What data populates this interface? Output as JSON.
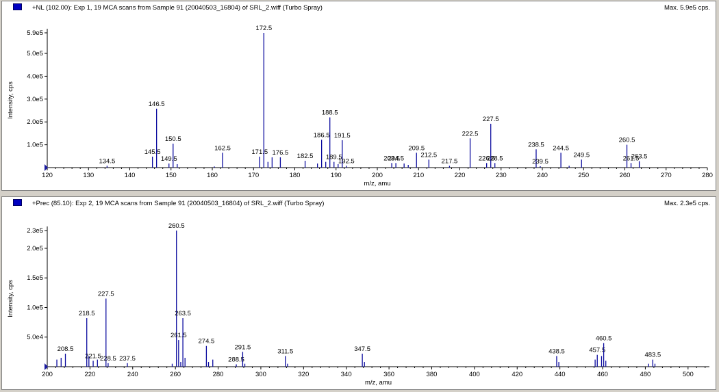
{
  "panels": [
    {
      "title": "+NL (102.00): Exp 1, 19 MCA scans from Sample 91 (20040503_16804) of SRL_2.wiff (Turbo Spray)",
      "max": "Max. 5.9e5 cps.",
      "colors": {
        "bar": "#0a0a9e",
        "marker": "#0000c0"
      }
    },
    {
      "title": "+Prec (85.10): Exp 2, 19 MCA scans from Sample 91 (20040503_16804) of SRL_2.wiff (Turbo Spray)",
      "max": "Max. 2.3e5 cps.",
      "colors": {
        "bar": "#0a0a9e",
        "marker": "#0000c0"
      }
    }
  ],
  "chart_data": [
    {
      "type": "bar",
      "xlabel": "m/z, amu",
      "ylabel": "Intensity, cps",
      "xlim": [
        120,
        280
      ],
      "ylim": [
        0,
        590000
      ],
      "xticks": [
        120,
        130,
        140,
        150,
        160,
        170,
        180,
        190,
        200,
        210,
        220,
        230,
        240,
        250,
        260,
        270,
        280
      ],
      "yticks": [
        {
          "v": 100000,
          "label": "1.0e5"
        },
        {
          "v": 200000,
          "label": "2.0e5"
        },
        {
          "v": 300000,
          "label": "3.0e5"
        },
        {
          "v": 400000,
          "label": "4.0e5"
        },
        {
          "v": 500000,
          "label": "5.0e5"
        },
        {
          "v": 590000,
          "label": "5.9e5"
        }
      ],
      "peaks": [
        {
          "x": 134.5,
          "y": 8000,
          "label": "134.5"
        },
        {
          "x": 145.5,
          "y": 48000,
          "label": "145.5"
        },
        {
          "x": 146.5,
          "y": 258000,
          "label": "146.5"
        },
        {
          "x": 149.5,
          "y": 18000,
          "label": "149.5"
        },
        {
          "x": 150.5,
          "y": 105000,
          "label": "150.5"
        },
        {
          "x": 151.5,
          "y": 15000
        },
        {
          "x": 160.5,
          "y": 5000
        },
        {
          "x": 162.5,
          "y": 65000,
          "label": "162.5"
        },
        {
          "x": 171.5,
          "y": 48000,
          "label": "171.5"
        },
        {
          "x": 172.5,
          "y": 590000,
          "label": "172.5"
        },
        {
          "x": 173.5,
          "y": 25000
        },
        {
          "x": 174.5,
          "y": 45000
        },
        {
          "x": 176.5,
          "y": 45000,
          "label": "176.5"
        },
        {
          "x": 182.5,
          "y": 30000,
          "label": "182.5"
        },
        {
          "x": 185.5,
          "y": 18000
        },
        {
          "x": 186.5,
          "y": 122000,
          "label": "186.5"
        },
        {
          "x": 187.5,
          "y": 25000
        },
        {
          "x": 188.5,
          "y": 220000,
          "label": "188.5"
        },
        {
          "x": 189.5,
          "y": 25000,
          "label": "189.5"
        },
        {
          "x": 190.5,
          "y": 15000
        },
        {
          "x": 191.5,
          "y": 120000,
          "label": "191.5"
        },
        {
          "x": 192.5,
          "y": 8000,
          "label": "192.5"
        },
        {
          "x": 203.5,
          "y": 20000,
          "label": "203.5"
        },
        {
          "x": 204.5,
          "y": 20000,
          "label": "204.5"
        },
        {
          "x": 206.5,
          "y": 18000
        },
        {
          "x": 207.5,
          "y": 12000
        },
        {
          "x": 209.5,
          "y": 65000,
          "label": "209.5"
        },
        {
          "x": 212.5,
          "y": 35000,
          "label": "212.5"
        },
        {
          "x": 217.5,
          "y": 8000,
          "label": "217.5"
        },
        {
          "x": 222.5,
          "y": 128000,
          "label": "222.5"
        },
        {
          "x": 226.5,
          "y": 20000,
          "label": "226.5"
        },
        {
          "x": 227.5,
          "y": 192000,
          "label": "227.5"
        },
        {
          "x": 228.5,
          "y": 20000,
          "label": "228.5"
        },
        {
          "x": 238.5,
          "y": 80000,
          "label": "238.5"
        },
        {
          "x": 239.5,
          "y": 6000,
          "label": "239.5"
        },
        {
          "x": 244.5,
          "y": 65000,
          "label": "244.5"
        },
        {
          "x": 246.5,
          "y": 8000
        },
        {
          "x": 249.5,
          "y": 35000,
          "label": "249.5"
        },
        {
          "x": 260.5,
          "y": 100000,
          "label": "260.5"
        },
        {
          "x": 261.5,
          "y": 20000,
          "label": "261.5"
        },
        {
          "x": 263.5,
          "y": 28000,
          "label": "263.5"
        }
      ]
    },
    {
      "type": "bar",
      "xlabel": "m/z, amu",
      "ylabel": "Intensity, cps",
      "xlim": [
        200,
        510
      ],
      "ylim": [
        0,
        230000
      ],
      "xticks": [
        200,
        220,
        240,
        260,
        280,
        300,
        320,
        340,
        360,
        380,
        400,
        420,
        440,
        460,
        480,
        500
      ],
      "yticks": [
        {
          "v": 50000,
          "label": "5.0e4"
        },
        {
          "v": 100000,
          "label": "1.0e5"
        },
        {
          "v": 150000,
          "label": "1.5e5"
        },
        {
          "v": 200000,
          "label": "2.0e5"
        },
        {
          "v": 230000,
          "label": "2.3e5"
        }
      ],
      "peaks": [
        {
          "x": 204.5,
          "y": 12000
        },
        {
          "x": 206.5,
          "y": 15000
        },
        {
          "x": 208.5,
          "y": 22000,
          "label": "208.5"
        },
        {
          "x": 218.5,
          "y": 82000,
          "label": "218.5"
        },
        {
          "x": 219.5,
          "y": 18000
        },
        {
          "x": 221.5,
          "y": 10000,
          "label": "221.5"
        },
        {
          "x": 223.5,
          "y": 12000
        },
        {
          "x": 227.5,
          "y": 115000,
          "label": "227.5"
        },
        {
          "x": 228.5,
          "y": 6000,
          "label": "228.5"
        },
        {
          "x": 237.5,
          "y": 6000,
          "label": "237.5"
        },
        {
          "x": 258.5,
          "y": 5000
        },
        {
          "x": 260.5,
          "y": 230000,
          "label": "260.5"
        },
        {
          "x": 261.5,
          "y": 45000,
          "label": "261.5"
        },
        {
          "x": 262.5,
          "y": 8000
        },
        {
          "x": 263.5,
          "y": 82000,
          "label": "263.5"
        },
        {
          "x": 264.5,
          "y": 15000
        },
        {
          "x": 274.5,
          "y": 35000,
          "label": "274.5"
        },
        {
          "x": 275.5,
          "y": 8000
        },
        {
          "x": 277.5,
          "y": 12000
        },
        {
          "x": 288.5,
          "y": 4000,
          "label": "288.5"
        },
        {
          "x": 291.5,
          "y": 25000,
          "label": "291.5"
        },
        {
          "x": 292.5,
          "y": 5000
        },
        {
          "x": 311.5,
          "y": 18000,
          "label": "311.5"
        },
        {
          "x": 312.5,
          "y": 5000
        },
        {
          "x": 347.5,
          "y": 22000,
          "label": "347.5"
        },
        {
          "x": 348.5,
          "y": 8000
        },
        {
          "x": 438.5,
          "y": 18000,
          "label": "438.5"
        },
        {
          "x": 439.5,
          "y": 8000
        },
        {
          "x": 456.5,
          "y": 12000
        },
        {
          "x": 457.5,
          "y": 20000,
          "label": "457.5"
        },
        {
          "x": 459.5,
          "y": 18000
        },
        {
          "x": 460.5,
          "y": 40000,
          "label": "460.5"
        },
        {
          "x": 461.5,
          "y": 10000
        },
        {
          "x": 481.5,
          "y": 5000
        },
        {
          "x": 483.5,
          "y": 12000,
          "label": "483.5"
        },
        {
          "x": 484.5,
          "y": 5000
        }
      ]
    }
  ]
}
